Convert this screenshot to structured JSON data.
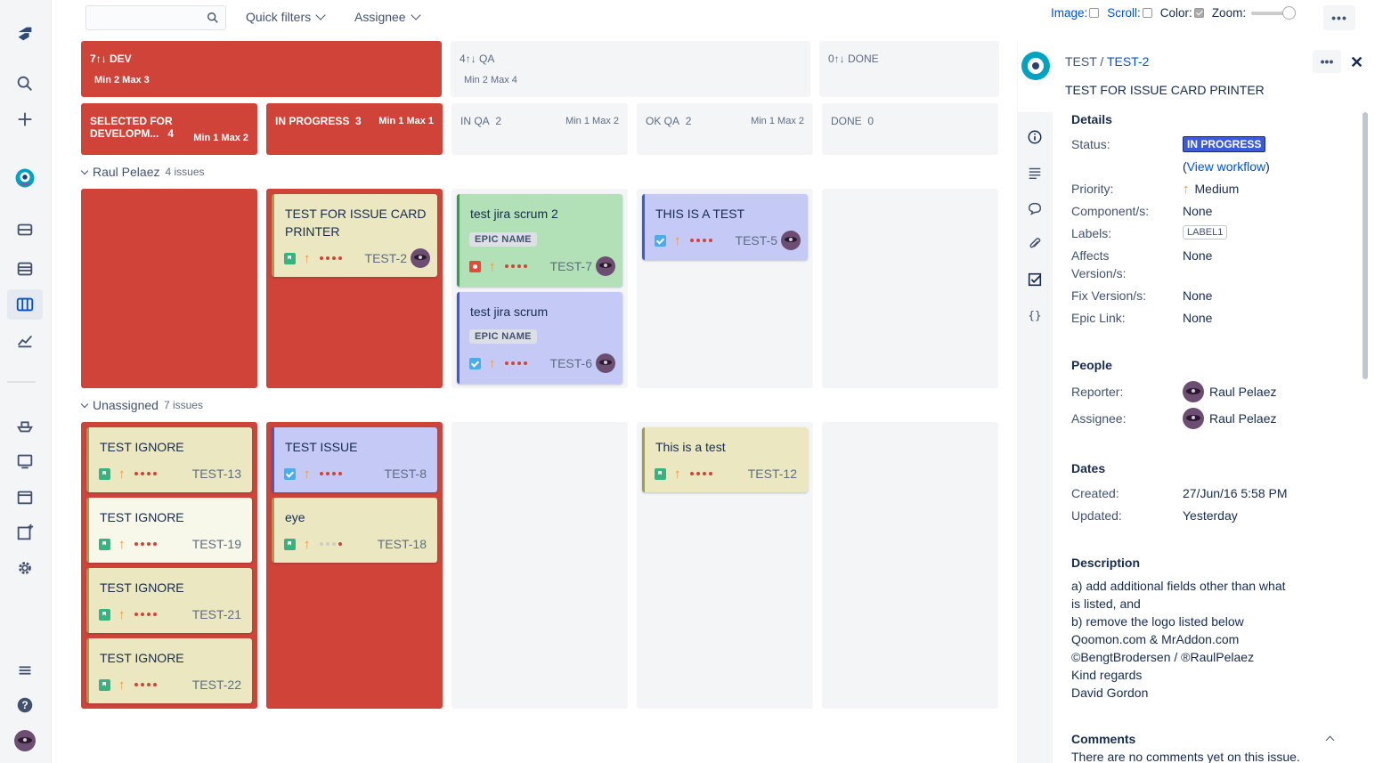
{
  "toolbar": {
    "search_placeholder": "",
    "quick_filters": "Quick filters",
    "assignee": "Assignee",
    "image_label": "Image:",
    "scroll_label": "Scroll:",
    "color_label": "Color:",
    "zoom_label": "Zoom:",
    "more": "•••"
  },
  "column_groups": [
    {
      "label": "7↑↓ DEV",
      "limits": "Min 2  Max 3"
    },
    {
      "label": "4↑↓ QA",
      "limits": "Min 2  Max 4"
    },
    {
      "label": "0↑↓ DONE",
      "limits": ""
    }
  ],
  "columns": [
    {
      "name": "SELECTED FOR DEVELOPM...",
      "count": "4",
      "limits": "Min 1  Max 2"
    },
    {
      "name": "IN PROGRESS",
      "count": "3",
      "limits": "Min 1  Max 1"
    },
    {
      "name": "IN QA",
      "count": "2",
      "limits": "Min 1  Max 2"
    },
    {
      "name": "OK QA",
      "count": "2",
      "limits": "Min 1  Max 2"
    },
    {
      "name": "DONE",
      "count": "0",
      "limits": ""
    }
  ],
  "swimlanes": [
    {
      "name": "Raul Pelaez",
      "count": "4 issues"
    },
    {
      "name": "Unassigned",
      "count": "7 issues"
    }
  ],
  "cards": {
    "test2": {
      "title": "TEST FOR ISSUE CARD PRINTER",
      "key": "TEST-2"
    },
    "test7": {
      "title": "test jira scrum 2",
      "epic": "EPIC NAME",
      "key": "TEST-7"
    },
    "test6": {
      "title": "test jira scrum",
      "epic": "EPIC NAME",
      "key": "TEST-6"
    },
    "test5": {
      "title": "THIS IS A TEST",
      "key": "TEST-5"
    },
    "test13": {
      "title": "TEST IGNORE",
      "key": "TEST-13"
    },
    "test19": {
      "title": "TEST IGNORE",
      "key": "TEST-19"
    },
    "test21": {
      "title": "TEST IGNORE",
      "key": "TEST-21"
    },
    "test22": {
      "title": "TEST IGNORE",
      "key": "TEST-22"
    },
    "test8": {
      "title": "TEST ISSUE",
      "key": "TEST-8"
    },
    "test18": {
      "title": "eye",
      "key": "TEST-18"
    },
    "test12": {
      "title": "This is a test",
      "key": "TEST-12"
    }
  },
  "detail": {
    "project": "TEST /",
    "issue_key": "TEST-2",
    "title": "TEST FOR ISSUE CARD PRINTER",
    "details_heading": "Details",
    "status_label": "Status:",
    "status_value": "IN PROGRESS",
    "view_workflow_open": "(",
    "view_workflow": "View workflow",
    "view_workflow_close": ")",
    "priority_label": "Priority:",
    "priority_value": "Medium",
    "components_label": "Component/s:",
    "components_value": "None",
    "labels_label": "Labels:",
    "labels_value": "LABEL1",
    "affects_label": "Affects",
    "affects_label2": "Version/s:",
    "affects_value": "None",
    "fix_label": "Fix Version/s:",
    "fix_value": "None",
    "epic_label": "Epic Link:",
    "epic_value": "None",
    "people_heading": "People",
    "reporter_label": "Reporter:",
    "reporter_value": "Raul Pelaez",
    "assignee_label": "Assignee:",
    "assignee_value": "Raul Pelaez",
    "dates_heading": "Dates",
    "created_label": "Created:",
    "created_value": "27/Jun/16 5:58 PM",
    "updated_label": "Updated:",
    "updated_value": "Yesterday",
    "description_heading": "Description",
    "description_lines": [
      "a) add additional fields other than what",
      "is listed, and",
      "b) remove the logo listed below",
      "Qoomon.com & MrAddon.com",
      "©BengtBrodersen / ®RaulPelaez",
      "Kind regards",
      "David Gordon"
    ],
    "comments_heading": "Comments",
    "comments_empty": "There are no comments yet on this issue."
  },
  "colors": {
    "red_column": "#cf4338",
    "card_yellow": "#ebe8c1",
    "card_blue": "#c4caf5",
    "card_green": "#b2e0b7",
    "status": "#3b5bdb"
  }
}
